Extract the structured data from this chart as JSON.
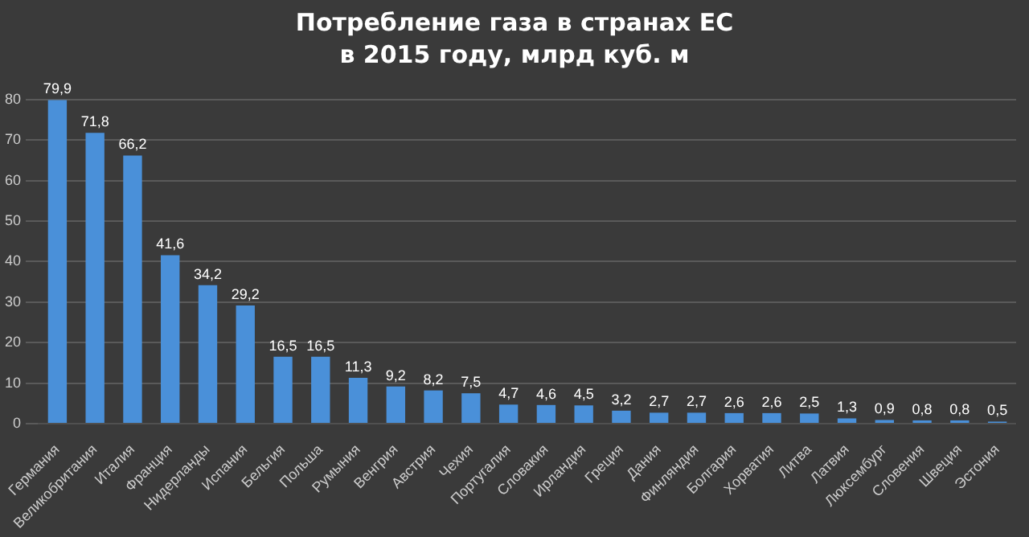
{
  "chart_data": {
    "type": "bar",
    "title": "Потребление газа в странах ЕС\nв 2015 году, млрд куб. м",
    "categories": [
      "Германия",
      "Великобритания",
      "Италия",
      "Франция",
      "Нидерланды",
      "Испания",
      "Бельгия",
      "Польша",
      "Румыния",
      "Венгрия",
      "Австрия",
      "Чехия",
      "Португалия",
      "Словакия",
      "Ирландия",
      "Греция",
      "Дания",
      "Финляндия",
      "Болгария",
      "Хорватия",
      "Литва",
      "Латвия",
      "Люксембург",
      "Словения",
      "Швеция",
      "Эстония"
    ],
    "values": [
      79.9,
      71.8,
      66.2,
      41.6,
      34.2,
      29.2,
      16.5,
      16.5,
      11.3,
      9.2,
      8.2,
      7.5,
      4.7,
      4.6,
      4.5,
      3.2,
      2.7,
      2.7,
      2.6,
      2.6,
      2.5,
      1.3,
      0.9,
      0.8,
      0.8,
      0.5
    ],
    "value_labels": [
      "79,9",
      "71,8",
      "66,2",
      "41,6",
      "34,2",
      "29,2",
      "16,5",
      "16,5",
      "11,3",
      "9,2",
      "8,2",
      "7,5",
      "4,7",
      "4,6",
      "4,5",
      "3,2",
      "2,7",
      "2,7",
      "2,6",
      "2,6",
      "2,5",
      "1,3",
      "0,9",
      "0,8",
      "0,8",
      "0,5"
    ],
    "color": "#4a90d9",
    "ylim": [
      0,
      80
    ],
    "yticks": [
      0,
      10,
      20,
      30,
      40,
      50,
      60,
      70,
      80
    ],
    "grid": "y",
    "legend": false
  }
}
